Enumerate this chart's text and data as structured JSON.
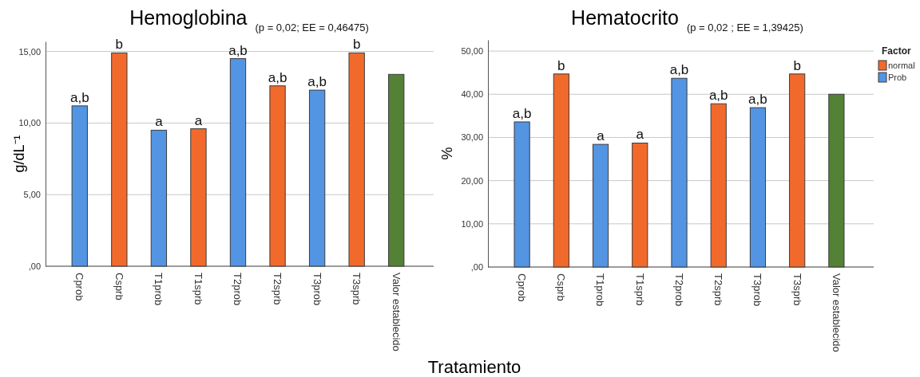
{
  "chart_data": [
    {
      "type": "bar",
      "title": "Hemoglobina",
      "subtitle": "(p = 0,02; EE = 0,46475)",
      "ylabel": "g/dL⁻¹",
      "categories": [
        "Cprob",
        "Csprb",
        "T1prob",
        "T1sprb",
        "T2prob",
        "T2sprb",
        "T3prob",
        "T3sprb",
        "Valor establecido"
      ],
      "series": [
        {
          "color": "#f26a2b",
          "values": [
            null,
            14.9,
            null,
            9.6,
            null,
            12.6,
            null,
            14.9,
            null
          ],
          "value_labels": [
            null,
            "b",
            null,
            "a",
            null,
            "a,b",
            null,
            "b",
            null
          ]
        },
        {
          "color": "#5394e3",
          "values": [
            11.2,
            null,
            9.5,
            null,
            14.5,
            null,
            12.3,
            null,
            null
          ],
          "value_labels": [
            "a,b",
            null,
            "a",
            null,
            "a,b",
            null,
            "a,b",
            null,
            null
          ]
        },
        {
          "color": "#538135",
          "values": [
            null,
            null,
            null,
            null,
            null,
            null,
            null,
            null,
            13.4
          ]
        }
      ],
      "ylim": [
        0,
        15.7
      ],
      "yticks": [
        {
          "value": 0,
          "label": ",00"
        },
        {
          "value": 5,
          "label": "5,00"
        },
        {
          "value": 10,
          "label": "10,00"
        },
        {
          "value": 15,
          "label": "15,00"
        }
      ],
      "grid": "y"
    },
    {
      "type": "bar",
      "title": "Hematocrito",
      "subtitle": "(p = 0,02 ; EE = 1,39425)",
      "xlabel": "Tratamiento",
      "ylabel": "%",
      "legend_title": "Factor",
      "categories": [
        "Cprob",
        "Csprb",
        "T1prob",
        "T1sprb",
        "T2prob",
        "T2sprb",
        "T3prob",
        "T3sprb",
        "Valor establecido"
      ],
      "series": [
        {
          "name": "normal",
          "color": "#f26a2b",
          "values": [
            null,
            44.7,
            null,
            28.7,
            null,
            37.8,
            null,
            44.7,
            null
          ],
          "value_labels": [
            null,
            "b",
            null,
            "a",
            null,
            "a,b",
            null,
            "b",
            null
          ]
        },
        {
          "name": "Prob",
          "color": "#5394e3",
          "values": [
            33.6,
            null,
            28.4,
            null,
            43.7,
            null,
            36.9,
            null,
            null
          ],
          "value_labels": [
            "a,b",
            null,
            "a",
            null,
            "a,b",
            null,
            "a,b",
            null,
            null
          ]
        },
        {
          "color": "#538135",
          "values": [
            null,
            null,
            null,
            null,
            null,
            null,
            null,
            null,
            40
          ]
        }
      ],
      "ylim": [
        0,
        52.6
      ],
      "yticks": [
        {
          "value": 0,
          "label": ",00"
        },
        {
          "value": 10,
          "label": "10,00"
        },
        {
          "value": 20,
          "label": "20,00"
        },
        {
          "value": 30,
          "label": "30,00"
        },
        {
          "value": 40,
          "label": "40,00"
        },
        {
          "value": 50,
          "label": "50,00"
        }
      ],
      "grid": "y",
      "legend": "top right"
    }
  ]
}
